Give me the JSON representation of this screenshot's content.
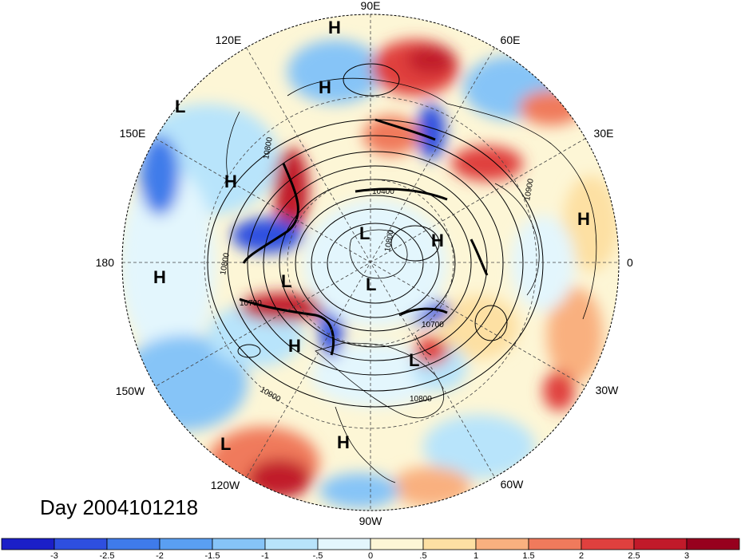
{
  "title": "Day 2004101218",
  "longitude_labels": [
    "90E",
    "60E",
    "30E",
    "0",
    "30W",
    "60W",
    "90W",
    "120W",
    "150W",
    "180",
    "150E",
    "120E"
  ],
  "contour_labels": [
    "10800",
    "10400",
    "10900",
    "10800",
    "10700",
    "10800",
    "10900",
    "10800",
    "10700"
  ],
  "pressure_centers": [
    {
      "type": "H",
      "label": "H"
    },
    {
      "type": "H",
      "label": "H"
    },
    {
      "type": "L",
      "label": "L"
    },
    {
      "type": "H",
      "label": "H"
    },
    {
      "type": "H",
      "label": "H"
    },
    {
      "type": "H",
      "label": "H"
    },
    {
      "type": "L",
      "label": "L"
    },
    {
      "type": "H",
      "label": "H"
    },
    {
      "type": "L",
      "label": "L"
    },
    {
      "type": "L",
      "label": "L"
    },
    {
      "type": "H",
      "label": "H"
    },
    {
      "type": "L",
      "label": "L"
    },
    {
      "type": "L",
      "label": "L"
    },
    {
      "type": "H",
      "label": "H"
    }
  ],
  "colorbar": {
    "labels": [
      "-3",
      "-2.5",
      "-2",
      "-1.5",
      "-1",
      "-.5",
      "0",
      ".5",
      "1",
      "1.5",
      "2",
      "2.5",
      "3"
    ],
    "colors": [
      "#1b1fc8",
      "#2e4fe0",
      "#3f7bea",
      "#5a9ff2",
      "#86c4f7",
      "#b8e4fb",
      "#e3f6fd",
      "#fdf6d6",
      "#fde0a3",
      "#f9b07f",
      "#f07a5c",
      "#e0403e",
      "#c11a2a",
      "#97001e"
    ]
  },
  "colors": {
    "contour": "#000000",
    "land": "#000000",
    "warm_anomaly": "#e0403e",
    "cold_anomaly": "#3f7bea"
  }
}
